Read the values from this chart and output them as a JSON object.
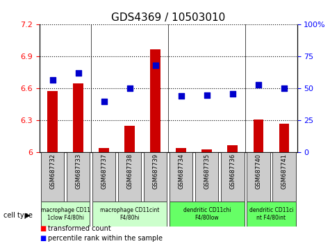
{
  "title": "GDS4369 / 10503010",
  "samples": [
    "GSM687732",
    "GSM687733",
    "GSM687737",
    "GSM687738",
    "GSM687739",
    "GSM687734",
    "GSM687735",
    "GSM687736",
    "GSM687740",
    "GSM687741"
  ],
  "transformed_count": [
    6.58,
    6.65,
    6.04,
    6.25,
    6.97,
    6.04,
    6.03,
    6.07,
    6.31,
    6.27
  ],
  "percentile_rank": [
    57,
    62,
    40,
    50,
    68,
    44,
    45,
    46,
    53,
    50
  ],
  "ylim_left": [
    6.0,
    7.2
  ],
  "ylim_right": [
    0,
    100
  ],
  "yticks_left": [
    6.0,
    6.3,
    6.6,
    6.9,
    7.2
  ],
  "yticks_right": [
    0,
    25,
    50,
    75,
    100
  ],
  "ytick_labels_left": [
    "6",
    "6.3",
    "6.6",
    "6.9",
    "7.2"
  ],
  "ytick_labels_right": [
    "0",
    "25",
    "50",
    "75",
    "100%"
  ],
  "bar_color": "#cc0000",
  "scatter_color": "#0000cc",
  "cell_type_groups": [
    {
      "label": "macrophage CD11\n1clow F4/80hi",
      "start": 0,
      "end": 1,
      "color": "#ccffcc"
    },
    {
      "label": "macrophage CD11cint\nF4/80hi",
      "start": 2,
      "end": 4,
      "color": "#ccffcc"
    },
    {
      "label": "dendritic CD11chi\nF4/80low",
      "start": 5,
      "end": 7,
      "color": "#66ff66"
    },
    {
      "label": "dendritic CD11ci\nnt F4/80int",
      "start": 8,
      "end": 9,
      "color": "#66ff66"
    }
  ],
  "legend_items": [
    {
      "label": "transformed count",
      "color": "#cc0000",
      "marker": "s"
    },
    {
      "label": "percentile rank within the sample",
      "color": "#0000cc",
      "marker": "s"
    }
  ],
  "cell_type_label": "cell type",
  "grid_color": "black",
  "grid_linestyle": "dotted",
  "background_color": "#ffffff"
}
